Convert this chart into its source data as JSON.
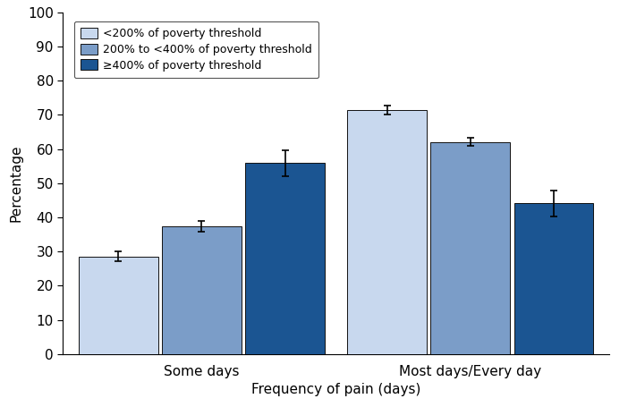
{
  "groups": [
    "Some days",
    "Most days/Every day"
  ],
  "categories": [
    "<200% of poverty threshold",
    "200% to <400% of poverty threshold",
    "≥400% of poverty threshold"
  ],
  "values": [
    [
      28.6,
      37.4,
      55.9
    ],
    [
      71.4,
      62.1,
      44.1
    ]
  ],
  "errors": [
    [
      1.5,
      1.5,
      3.8
    ],
    [
      1.2,
      1.2,
      3.8
    ]
  ],
  "colors": [
    "#c8d8ee",
    "#7b9dc8",
    "#1b5592"
  ],
  "bar_edge_color": "#111111",
  "ylabel": "Percentage",
  "xlabel": "Frequency of pain (days)",
  "ylim": [
    0,
    100
  ],
  "yticks": [
    0,
    10,
    20,
    30,
    40,
    50,
    60,
    70,
    80,
    90,
    100
  ],
  "bar_width": 0.18,
  "group_centers": [
    0.3,
    0.88
  ],
  "xlim": [
    0.0,
    1.18
  ],
  "legend_labels": [
    "<200% of poverty threshold",
    "200% to <400% of poverty threshold",
    "≥400% of poverty threshold"
  ],
  "background_color": "#ffffff",
  "error_capsize": 3,
  "error_linewidth": 1.2,
  "figsize": [
    7.02,
    4.55
  ],
  "dpi": 100
}
